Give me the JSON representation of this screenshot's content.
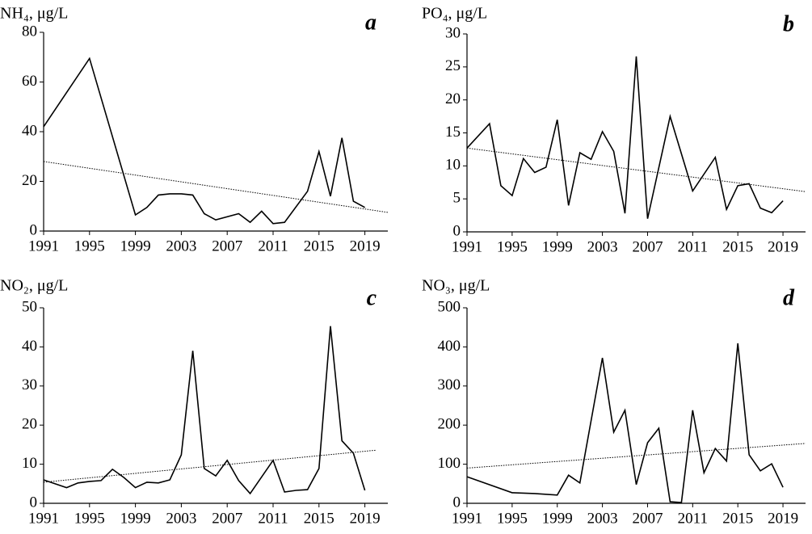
{
  "chart_data": [
    {
      "type": "line",
      "title": "NH₄, μg/L",
      "annotation": "a",
      "color": "#000000",
      "x": [
        1991,
        1995,
        1999,
        2000,
        2001,
        2002,
        2003,
        2004,
        2005,
        2006,
        2008,
        2009,
        2010,
        2011,
        2012,
        2014,
        2015,
        2016,
        2017,
        2018,
        2019
      ],
      "values": [
        42,
        69.5,
        6.5,
        9.5,
        14.5,
        15,
        15,
        14.5,
        7,
        4.5,
        7,
        3.5,
        8,
        3,
        3.5,
        16,
        32,
        14,
        37.5,
        12,
        9.5
      ],
      "trend": {
        "x": [
          1991,
          2021
        ],
        "values": [
          28,
          7.5
        ]
      },
      "xlim": [
        1991,
        2021
      ],
      "ylim": [
        0,
        80
      ],
      "xticks": [
        1991,
        1995,
        1999,
        2003,
        2007,
        2011,
        2015,
        2019
      ],
      "yticks": [
        0,
        20,
        40,
        60,
        80
      ]
    },
    {
      "type": "line",
      "title": "PO₄, μg/L",
      "annotation": "b",
      "color": "#000000",
      "x": [
        1991,
        1993,
        1994,
        1995,
        1996,
        1997,
        1998,
        1999,
        2000,
        2001,
        2002,
        2003,
        2004,
        2005,
        2006,
        2007,
        2009,
        2011,
        2013,
        2014,
        2015,
        2016,
        2017,
        2018,
        2019
      ],
      "values": [
        12.7,
        16.4,
        7,
        5.5,
        11.1,
        9,
        9.8,
        17,
        4,
        12,
        11,
        15.2,
        12.2,
        2.8,
        26.6,
        2,
        17.5,
        6.2,
        11.3,
        3.4,
        7,
        7.3,
        3.6,
        2.9,
        4.7
      ],
      "trend": {
        "x": [
          1991,
          2021
        ],
        "values": [
          12.7,
          6.1
        ]
      },
      "xlim": [
        1991,
        2021
      ],
      "ylim": [
        0,
        30
      ],
      "xticks": [
        1991,
        1995,
        1999,
        2003,
        2007,
        2011,
        2015,
        2019
      ],
      "yticks": [
        0,
        5,
        10,
        15,
        20,
        25,
        30
      ]
    },
    {
      "type": "line",
      "title": "NO₂, μg/L",
      "annotation": "c",
      "color": "#000000",
      "x": [
        1991,
        1993,
        1994,
        1995,
        1996,
        1997,
        1998,
        1999,
        2000,
        2001,
        2002,
        2003,
        2004,
        2005,
        2006,
        2007,
        2008,
        2009,
        2011,
        2012,
        2013,
        2014,
        2015,
        2016,
        2017,
        2018,
        2019
      ],
      "values": [
        6,
        4,
        5.2,
        5.6,
        5.8,
        8.7,
        6.6,
        4,
        5.4,
        5.2,
        6,
        12.4,
        39,
        8.9,
        7,
        11,
        5.8,
        2.5,
        11,
        2.9,
        3.3,
        3.5,
        8.9,
        45.3,
        16,
        12.8,
        3.3
      ],
      "trend": {
        "x": [
          1991,
          2020
        ],
        "values": [
          5.4,
          13.6
        ]
      },
      "xlim": [
        1991,
        2021
      ],
      "ylim": [
        0,
        50
      ],
      "xticks": [
        1991,
        1995,
        1999,
        2003,
        2007,
        2011,
        2015,
        2019
      ],
      "yticks": [
        0,
        10,
        20,
        30,
        40,
        50
      ]
    },
    {
      "type": "line",
      "title": "NO₃, μg/L",
      "annotation": "d",
      "color": "#000000",
      "x": [
        1991,
        1995,
        1997,
        1999,
        2000,
        2001,
        2003,
        2004,
        2005,
        2006,
        2007,
        2008,
        2009,
        2010,
        2011,
        2012,
        2013,
        2014,
        2015,
        2016,
        2017,
        2018,
        2019
      ],
      "values": [
        68,
        27,
        25,
        21,
        72,
        52,
        372,
        182,
        238,
        48,
        155,
        192,
        4,
        2,
        238,
        78,
        140,
        108,
        409,
        124,
        83,
        101,
        41
      ],
      "trend": {
        "x": [
          1991,
          2021
        ],
        "values": [
          90,
          153
        ]
      },
      "xlim": [
        1991,
        2021
      ],
      "ylim": [
        0,
        500
      ],
      "xticks": [
        1991,
        1995,
        1999,
        2003,
        2007,
        2011,
        2015,
        2019
      ],
      "yticks": [
        0,
        100,
        200,
        300,
        400,
        500
      ]
    }
  ]
}
